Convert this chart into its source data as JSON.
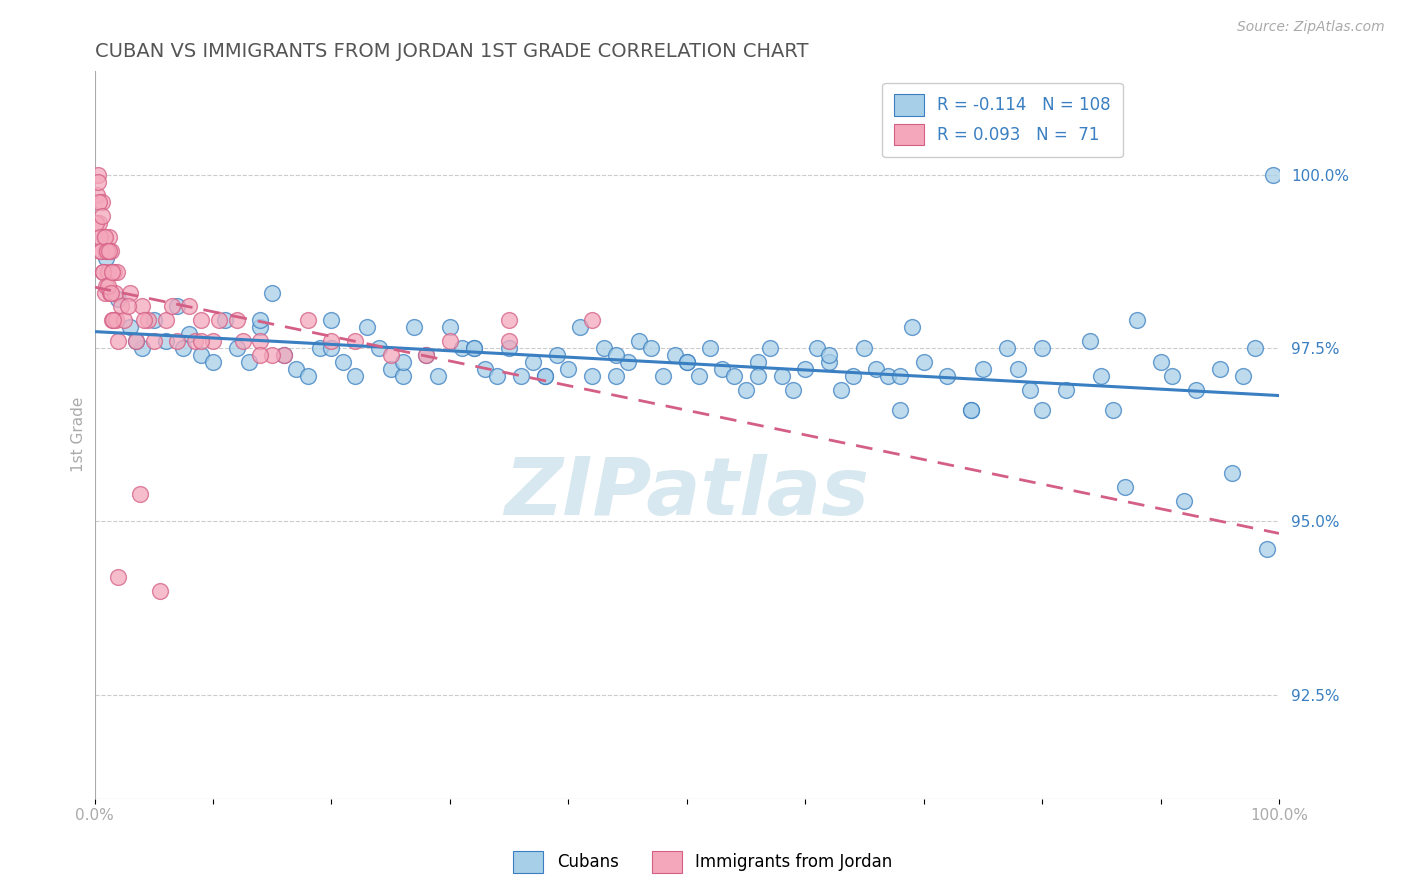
{
  "title": "CUBAN VS IMMIGRANTS FROM JORDAN 1ST GRADE CORRELATION CHART",
  "source_text": "Source: ZipAtlas.com",
  "ylabel": "1st Grade",
  "legend_blue_R": "-0.114",
  "legend_blue_N": "108",
  "legend_pink_R": "0.093",
  "legend_pink_N": "71",
  "blue_color": "#a8cfe8",
  "pink_color": "#f4a7bb",
  "blue_line_color": "#3a7fc1",
  "pink_line_color": "#d45f85",
  "watermark_color": "#d8e8f0",
  "watermark_text": "ZIPatlas",
  "xmin": 0.0,
  "xmax": 100.0,
  "ymin": 91.0,
  "ymax": 101.5,
  "right_yticks": [
    92.5,
    95.0,
    97.5,
    100.0
  ],
  "blue_scatter_x": [
    1.0,
    2.0,
    3.0,
    4.0,
    5.0,
    6.0,
    7.0,
    8.0,
    9.0,
    10.0,
    11.0,
    12.0,
    13.0,
    14.0,
    15.0,
    16.0,
    17.0,
    18.0,
    19.0,
    20.0,
    21.0,
    22.0,
    23.0,
    24.0,
    25.0,
    26.0,
    27.0,
    28.0,
    29.0,
    30.0,
    31.0,
    32.0,
    33.0,
    34.0,
    35.0,
    36.0,
    37.0,
    38.0,
    39.0,
    40.0,
    41.0,
    42.0,
    43.0,
    44.0,
    45.0,
    46.0,
    47.0,
    48.0,
    49.0,
    50.0,
    51.0,
    52.0,
    53.0,
    54.0,
    55.0,
    56.0,
    57.0,
    58.0,
    59.0,
    60.0,
    61.0,
    62.0,
    63.0,
    64.0,
    65.0,
    66.0,
    67.0,
    68.0,
    69.0,
    70.0,
    72.0,
    74.0,
    75.0,
    77.0,
    78.0,
    79.0,
    80.0,
    82.0,
    84.0,
    85.0,
    86.0,
    88.0,
    90.0,
    91.0,
    93.0,
    95.0,
    97.0,
    98.0,
    99.5,
    3.5,
    7.5,
    14.0,
    20.0,
    26.0,
    32.0,
    38.0,
    44.0,
    50.0,
    56.0,
    62.0,
    68.0,
    74.0,
    80.0,
    87.0,
    92.0,
    96.0,
    99.0
  ],
  "blue_scatter_y": [
    98.8,
    98.2,
    97.8,
    97.5,
    97.9,
    97.6,
    98.1,
    97.7,
    97.4,
    97.3,
    97.9,
    97.5,
    97.3,
    97.8,
    98.3,
    97.4,
    97.2,
    97.1,
    97.5,
    97.9,
    97.3,
    97.1,
    97.8,
    97.5,
    97.2,
    97.1,
    97.8,
    97.4,
    97.1,
    97.8,
    97.5,
    97.5,
    97.2,
    97.1,
    97.5,
    97.1,
    97.3,
    97.1,
    97.4,
    97.2,
    97.8,
    97.1,
    97.5,
    97.1,
    97.3,
    97.6,
    97.5,
    97.1,
    97.4,
    97.3,
    97.1,
    97.5,
    97.2,
    97.1,
    96.9,
    97.3,
    97.5,
    97.1,
    96.9,
    97.2,
    97.5,
    97.3,
    96.9,
    97.1,
    97.5,
    97.2,
    97.1,
    96.6,
    97.8,
    97.3,
    97.1,
    96.6,
    97.2,
    97.5,
    97.2,
    96.9,
    97.5,
    96.9,
    97.6,
    97.1,
    96.6,
    97.9,
    97.3,
    97.1,
    96.9,
    97.2,
    97.1,
    97.5,
    100.0,
    97.6,
    97.5,
    97.9,
    97.5,
    97.3,
    97.5,
    97.1,
    97.4,
    97.3,
    97.1,
    97.4,
    97.1,
    96.6,
    96.6,
    95.5,
    95.3,
    95.7,
    94.6
  ],
  "pink_scatter_x": [
    0.2,
    0.3,
    0.4,
    0.5,
    0.6,
    0.7,
    0.8,
    0.9,
    1.0,
    1.1,
    1.2,
    1.3,
    1.4,
    1.5,
    1.6,
    1.7,
    1.8,
    1.9,
    2.0,
    2.2,
    2.5,
    3.0,
    3.5,
    4.0,
    4.5,
    5.0,
    6.0,
    7.0,
    8.0,
    9.0,
    10.0,
    12.0,
    14.0,
    16.0,
    18.0,
    20.0,
    25.0,
    30.0,
    35.0,
    0.15,
    0.25,
    0.35,
    0.45,
    0.55,
    0.65,
    0.75,
    0.85,
    0.95,
    1.05,
    1.15,
    1.25,
    1.35,
    1.45,
    1.55,
    2.8,
    4.2,
    6.5,
    8.5,
    10.5,
    12.5,
    15.0,
    22.0,
    28.0,
    35.0,
    42.0,
    2.0,
    3.8,
    5.5,
    9.0,
    14.0
  ],
  "pink_scatter_y": [
    99.7,
    100.0,
    99.3,
    98.9,
    99.6,
    98.6,
    99.1,
    98.3,
    98.9,
    98.6,
    99.1,
    98.3,
    98.9,
    97.9,
    98.6,
    98.3,
    97.9,
    98.6,
    97.6,
    98.1,
    97.9,
    98.3,
    97.6,
    98.1,
    97.9,
    97.6,
    97.9,
    97.6,
    98.1,
    97.9,
    97.6,
    97.9,
    97.6,
    97.4,
    97.9,
    97.6,
    97.4,
    97.6,
    97.9,
    99.3,
    99.9,
    99.6,
    99.1,
    98.9,
    99.4,
    98.6,
    99.1,
    98.4,
    98.9,
    98.4,
    98.9,
    98.3,
    98.6,
    97.9,
    98.1,
    97.9,
    98.1,
    97.6,
    97.9,
    97.6,
    97.4,
    97.6,
    97.4,
    97.6,
    97.9,
    94.2,
    95.4,
    94.0,
    97.6,
    97.4
  ],
  "dashed_grid_color": "#cccccc",
  "background_color": "#ffffff",
  "title_color": "#555555",
  "axis_color": "#aaaaaa",
  "right_label_color": "#3a7fc1"
}
